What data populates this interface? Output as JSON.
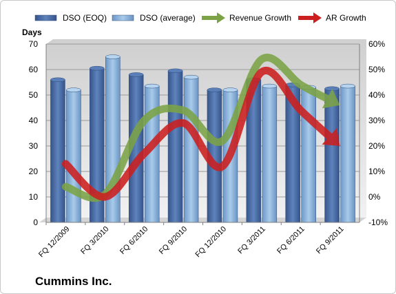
{
  "chart_data": {
    "type": "bar",
    "title": "",
    "footer": "Cummins Inc.",
    "ylabel_left": "Days",
    "categories": [
      "FQ 12/2009",
      "FQ 3/2010",
      "FQ 6/2010",
      "FQ 9/2010",
      "FQ 12/2010",
      "FQ 3/2011",
      "FQ 6/2011",
      "FQ 9/2011"
    ],
    "y_left": {
      "min": 0,
      "max": 70,
      "step": 10,
      "ticks": [
        "0",
        "10",
        "20",
        "30",
        "40",
        "50",
        "60",
        "70"
      ]
    },
    "y_right": {
      "min": -10,
      "max": 60,
      "step": 10,
      "ticks": [
        "-10%",
        "0%",
        "10%",
        "20%",
        "30%",
        "40%",
        "50%",
        "60%"
      ]
    },
    "grid": true,
    "legend_position": "top",
    "series": [
      {
        "name": "DSO (EOQ)",
        "kind": "bar",
        "axis": "left",
        "color": "#4b6fa8",
        "values": [
          56,
          60.5,
          58,
          59.5,
          52,
          56,
          54,
          52.5
        ]
      },
      {
        "name": "DSO (average)",
        "kind": "bar",
        "axis": "left",
        "color": "#8fb5dc",
        "values": [
          52,
          65,
          53.5,
          57,
          52,
          53.5,
          53,
          53.5
        ]
      },
      {
        "name": "Revenue Growth",
        "kind": "arrow-line",
        "axis": "right",
        "color": "#7ba346",
        "values": [
          4,
          1,
          30,
          34,
          22,
          54,
          44,
          36
        ]
      },
      {
        "name": "AR Growth",
        "kind": "arrow-line",
        "axis": "right",
        "color": "#cc1f1f",
        "values": [
          13,
          0,
          17,
          29,
          12,
          49,
          34,
          20
        ]
      }
    ]
  }
}
